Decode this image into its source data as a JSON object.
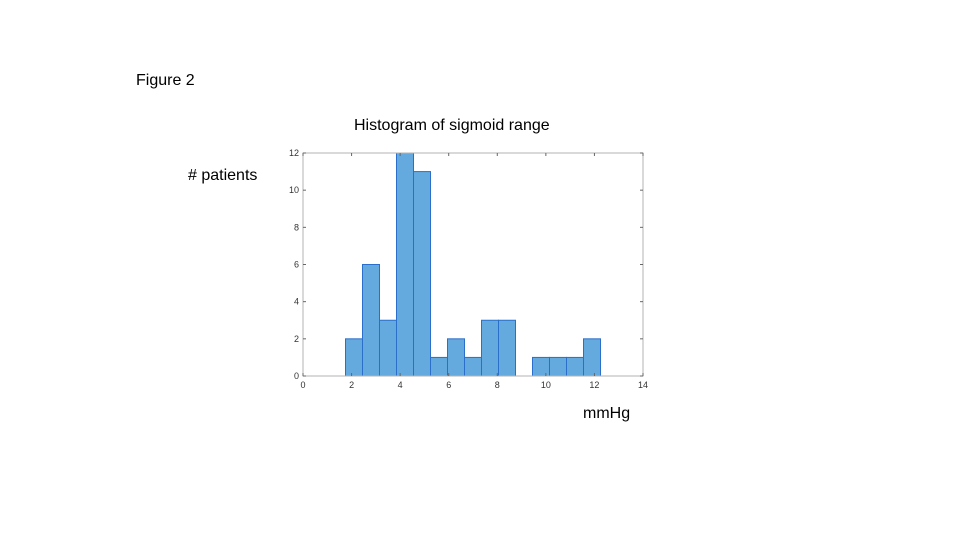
{
  "figure_label": "Figure 2",
  "chart_data": {
    "type": "bar",
    "title": "Histogram of sigmoid range",
    "xlabel": "mmHg",
    "ylabel": "# patients",
    "xlim": [
      0,
      14
    ],
    "ylim": [
      0,
      12
    ],
    "xticks": [
      0,
      2,
      4,
      6,
      8,
      10,
      12,
      14
    ],
    "yticks": [
      0,
      2,
      4,
      6,
      8,
      10,
      12
    ],
    "bin_width": 0.7,
    "bins": [
      {
        "x0": 1.75,
        "count": 2
      },
      {
        "x0": 2.45,
        "count": 6
      },
      {
        "x0": 3.15,
        "count": 3
      },
      {
        "x0": 3.85,
        "count": 12
      },
      {
        "x0": 4.55,
        "count": 11
      },
      {
        "x0": 5.25,
        "count": 1
      },
      {
        "x0": 5.95,
        "count": 2
      },
      {
        "x0": 6.65,
        "count": 1
      },
      {
        "x0": 7.35,
        "count": 3
      },
      {
        "x0": 8.05,
        "count": 3
      },
      {
        "x0": 8.75,
        "count": 0
      },
      {
        "x0": 9.45,
        "count": 1
      },
      {
        "x0": 10.15,
        "count": 1
      },
      {
        "x0": 10.85,
        "count": 1
      },
      {
        "x0": 11.55,
        "count": 2
      }
    ],
    "bar_color": "#65aade",
    "edge_color": "#2a6fc9",
    "grid": false
  }
}
